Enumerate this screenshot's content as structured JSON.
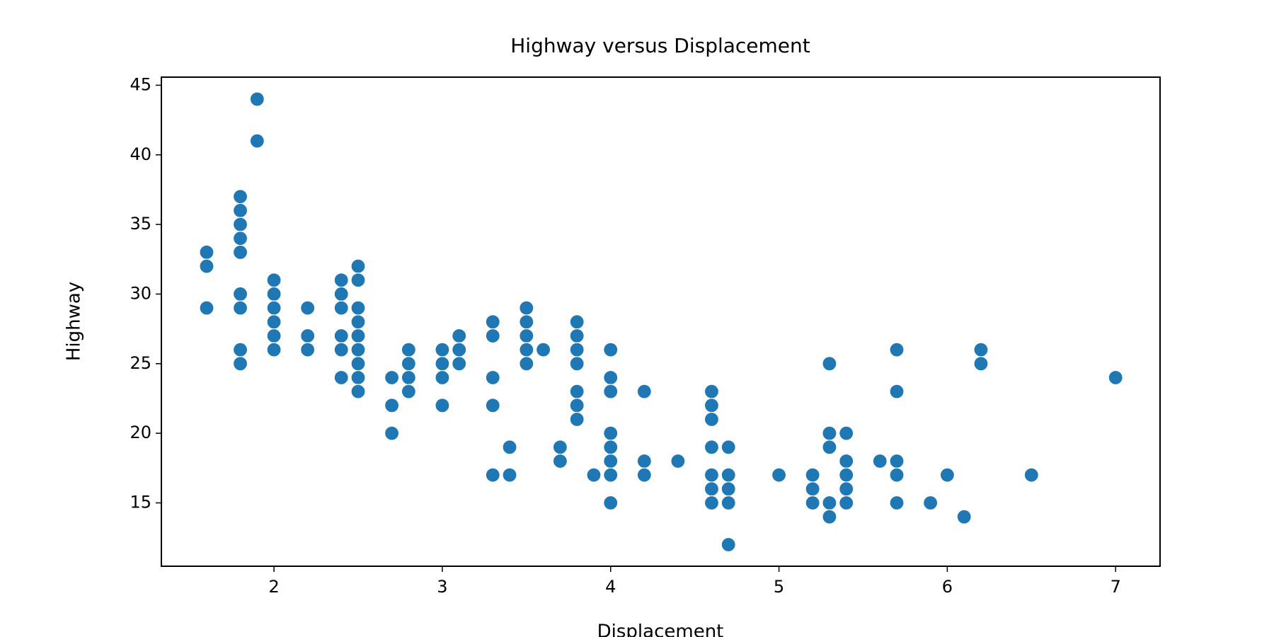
{
  "chart_data": {
    "type": "scatter",
    "title": "Highway versus Displacement",
    "x_label": "Displacement",
    "y_label": "Highway",
    "color": "#1f77b4",
    "x": [
      1.6,
      1.6,
      1.6,
      1.8,
      1.8,
      1.8,
      1.8,
      1.8,
      1.8,
      1.8,
      1.8,
      1.8,
      1.9,
      1.9,
      2.0,
      2.0,
      2.0,
      2.0,
      2.0,
      2.0,
      2.2,
      2.2,
      2.2,
      2.4,
      2.4,
      2.4,
      2.4,
      2.4,
      2.4,
      2.5,
      2.5,
      2.5,
      2.5,
      2.5,
      2.5,
      2.5,
      2.5,
      2.5,
      2.7,
      2.7,
      2.7,
      2.8,
      2.8,
      2.8,
      2.8,
      3.0,
      3.0,
      3.0,
      3.0,
      3.1,
      3.1,
      3.1,
      3.3,
      3.3,
      3.3,
      3.3,
      3.3,
      3.4,
      3.4,
      3.5,
      3.5,
      3.5,
      3.5,
      3.5,
      3.6,
      3.7,
      3.7,
      3.8,
      3.8,
      3.8,
      3.8,
      3.8,
      3.8,
      3.8,
      3.9,
      4.0,
      4.0,
      4.0,
      4.0,
      4.0,
      4.0,
      4.0,
      4.0,
      4.2,
      4.2,
      4.2,
      4.4,
      4.6,
      4.6,
      4.6,
      4.6,
      4.6,
      4.6,
      4.6,
      4.7,
      4.7,
      4.7,
      4.7,
      4.7,
      5.0,
      5.2,
      5.2,
      5.2,
      5.3,
      5.3,
      5.3,
      5.3,
      5.3,
      5.4,
      5.4,
      5.4,
      5.4,
      5.4,
      5.6,
      5.7,
      5.7,
      5.7,
      5.7,
      5.7,
      5.9,
      6.0,
      6.1,
      6.2,
      6.2,
      6.5,
      7.0
    ],
    "y": [
      33,
      32,
      29,
      37,
      36,
      35,
      34,
      33,
      30,
      29,
      26,
      25,
      44,
      41,
      31,
      30,
      29,
      28,
      27,
      26,
      29,
      27,
      26,
      31,
      30,
      29,
      27,
      26,
      24,
      32,
      31,
      29,
      28,
      27,
      26,
      25,
      24,
      23,
      24,
      22,
      20,
      26,
      25,
      24,
      23,
      26,
      25,
      24,
      22,
      27,
      26,
      25,
      28,
      27,
      24,
      22,
      17,
      19,
      17,
      29,
      28,
      27,
      26,
      25,
      26,
      19,
      18,
      28,
      27,
      26,
      25,
      23,
      22,
      21,
      17,
      26,
      24,
      23,
      20,
      19,
      18,
      17,
      15,
      23,
      18,
      17,
      18,
      23,
      22,
      21,
      19,
      17,
      16,
      15,
      19,
      17,
      16,
      15,
      12,
      17,
      17,
      16,
      15,
      25,
      20,
      19,
      15,
      14,
      20,
      18,
      17,
      16,
      15,
      18,
      26,
      23,
      18,
      17,
      15,
      15,
      17,
      14,
      26,
      25,
      17,
      24
    ],
    "xlim": [
      1.331,
      7.264
    ],
    "ylim": [
      10.45,
      45.58
    ],
    "xticks": [
      2,
      3,
      4,
      5,
      6,
      7
    ],
    "yticks": [
      15,
      20,
      25,
      30,
      35,
      40,
      45
    ]
  }
}
